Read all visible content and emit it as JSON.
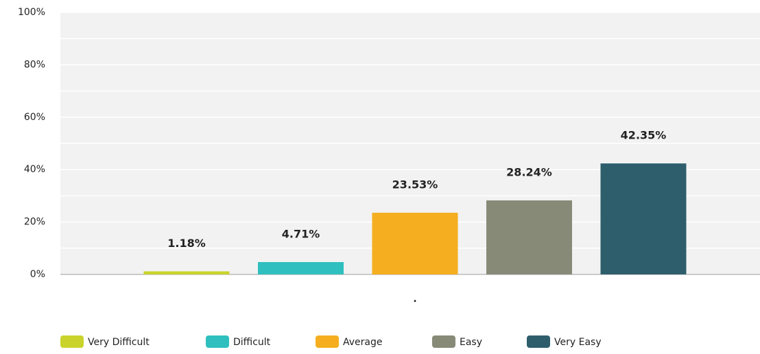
{
  "chart_data": {
    "type": "bar",
    "categories": [
      "."
    ],
    "series": [
      {
        "name": "Very Difficult",
        "color": "#c9d32c",
        "values": [
          1.18
        ],
        "value_labels": [
          "1.18%"
        ]
      },
      {
        "name": "Difficult",
        "color": "#2fbfbf",
        "values": [
          4.71
        ],
        "value_labels": [
          "4.71%"
        ]
      },
      {
        "name": "Average",
        "color": "#f5ae1f",
        "values": [
          23.53
        ],
        "value_labels": [
          "23.53%"
        ]
      },
      {
        "name": "Easy",
        "color": "#878a77",
        "values": [
          28.24
        ],
        "value_labels": [
          "28.24%"
        ]
      },
      {
        "name": "Very Easy",
        "color": "#2e5e6c",
        "values": [
          42.35
        ],
        "value_labels": [
          "42.35%"
        ]
      }
    ],
    "ylim": [
      0,
      100
    ],
    "yticks": [
      {
        "value": 0,
        "label": "0%"
      },
      {
        "value": 20,
        "label": "20%"
      },
      {
        "value": 40,
        "label": "40%"
      },
      {
        "value": 60,
        "label": "60%"
      },
      {
        "value": 80,
        "label": "80%"
      },
      {
        "value": 100,
        "label": "100%"
      }
    ],
    "minor_yticks": [
      10,
      30,
      50,
      70,
      90
    ],
    "grid": true,
    "legend": "bottom"
  }
}
